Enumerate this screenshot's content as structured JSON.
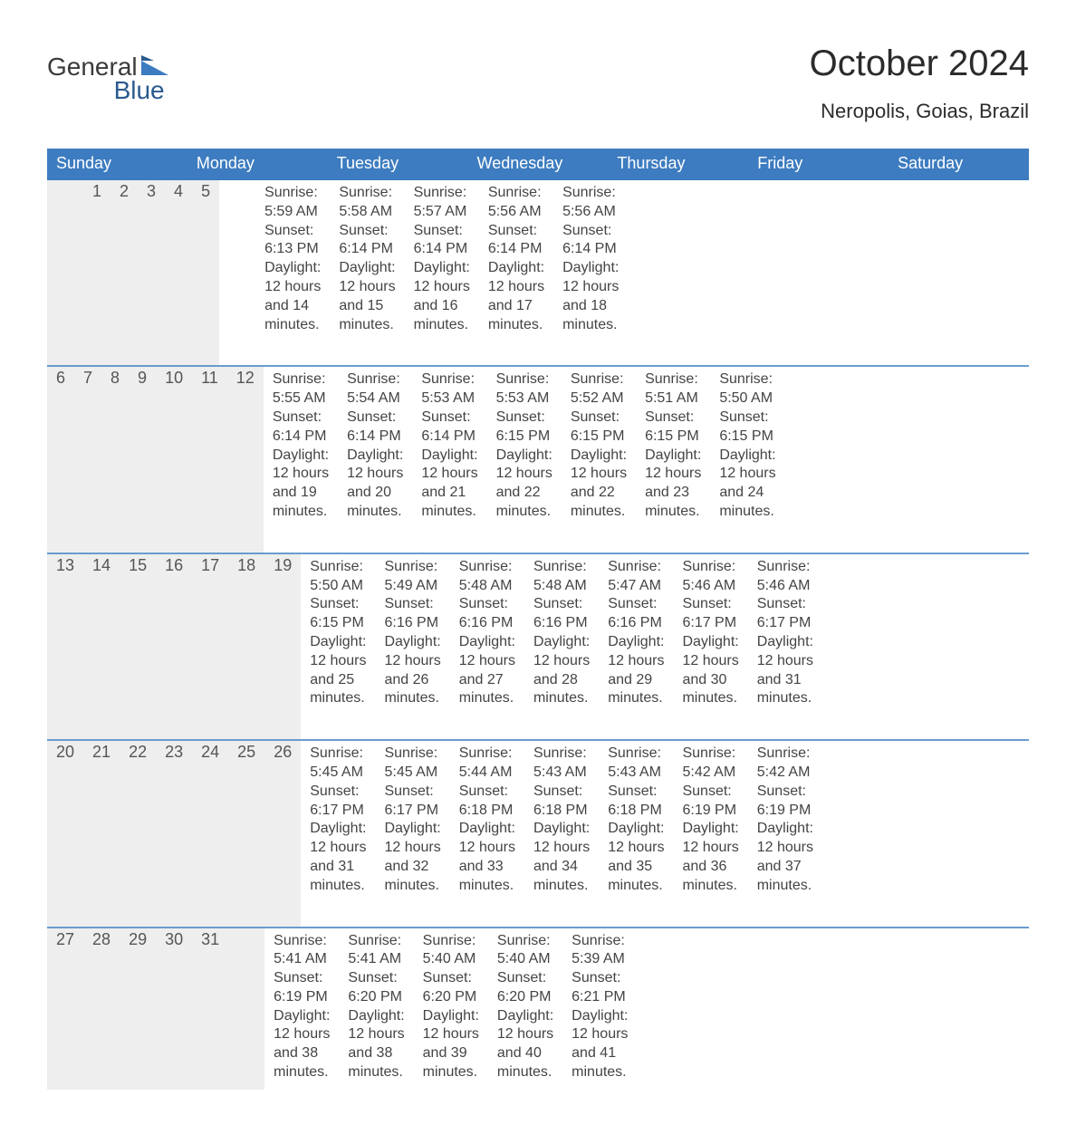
{
  "brand": {
    "line1": "General",
    "line2": "Blue",
    "logo_color": "#3d7cc0",
    "logo_dark": "#2b5b8f"
  },
  "title": "October 2024",
  "location": "Neropolis, Goias, Brazil",
  "colors": {
    "header_blue": "#3d7cc0",
    "daynum_bg": "#eeeeee",
    "row_divider": "#6a9ccf",
    "text": "#333333",
    "page_bg": "#ffffff"
  },
  "fonts": {
    "title_pt": 40,
    "location_pt": 22,
    "weekday_pt": 18,
    "daynum_pt": 18,
    "body_pt": 16
  },
  "weekdays": [
    "Sunday",
    "Monday",
    "Tuesday",
    "Wednesday",
    "Thursday",
    "Friday",
    "Saturday"
  ],
  "label_sunrise": "Sunrise:",
  "label_sunset": "Sunset:",
  "label_daylight": "Daylight:",
  "weeks": [
    [
      null,
      null,
      {
        "n": "1",
        "sunrise": "5:59 AM",
        "sunset": "6:13 PM",
        "daylight": "12 hours and 14 minutes."
      },
      {
        "n": "2",
        "sunrise": "5:58 AM",
        "sunset": "6:14 PM",
        "daylight": "12 hours and 15 minutes."
      },
      {
        "n": "3",
        "sunrise": "5:57 AM",
        "sunset": "6:14 PM",
        "daylight": "12 hours and 16 minutes."
      },
      {
        "n": "4",
        "sunrise": "5:56 AM",
        "sunset": "6:14 PM",
        "daylight": "12 hours and 17 minutes."
      },
      {
        "n": "5",
        "sunrise": "5:56 AM",
        "sunset": "6:14 PM",
        "daylight": "12 hours and 18 minutes."
      }
    ],
    [
      {
        "n": "6",
        "sunrise": "5:55 AM",
        "sunset": "6:14 PM",
        "daylight": "12 hours and 19 minutes."
      },
      {
        "n": "7",
        "sunrise": "5:54 AM",
        "sunset": "6:14 PM",
        "daylight": "12 hours and 20 minutes."
      },
      {
        "n": "8",
        "sunrise": "5:53 AM",
        "sunset": "6:14 PM",
        "daylight": "12 hours and 21 minutes."
      },
      {
        "n": "9",
        "sunrise": "5:53 AM",
        "sunset": "6:15 PM",
        "daylight": "12 hours and 22 minutes."
      },
      {
        "n": "10",
        "sunrise": "5:52 AM",
        "sunset": "6:15 PM",
        "daylight": "12 hours and 22 minutes."
      },
      {
        "n": "11",
        "sunrise": "5:51 AM",
        "sunset": "6:15 PM",
        "daylight": "12 hours and 23 minutes."
      },
      {
        "n": "12",
        "sunrise": "5:50 AM",
        "sunset": "6:15 PM",
        "daylight": "12 hours and 24 minutes."
      }
    ],
    [
      {
        "n": "13",
        "sunrise": "5:50 AM",
        "sunset": "6:15 PM",
        "daylight": "12 hours and 25 minutes."
      },
      {
        "n": "14",
        "sunrise": "5:49 AM",
        "sunset": "6:16 PM",
        "daylight": "12 hours and 26 minutes."
      },
      {
        "n": "15",
        "sunrise": "5:48 AM",
        "sunset": "6:16 PM",
        "daylight": "12 hours and 27 minutes."
      },
      {
        "n": "16",
        "sunrise": "5:48 AM",
        "sunset": "6:16 PM",
        "daylight": "12 hours and 28 minutes."
      },
      {
        "n": "17",
        "sunrise": "5:47 AM",
        "sunset": "6:16 PM",
        "daylight": "12 hours and 29 minutes."
      },
      {
        "n": "18",
        "sunrise": "5:46 AM",
        "sunset": "6:17 PM",
        "daylight": "12 hours and 30 minutes."
      },
      {
        "n": "19",
        "sunrise": "5:46 AM",
        "sunset": "6:17 PM",
        "daylight": "12 hours and 31 minutes."
      }
    ],
    [
      {
        "n": "20",
        "sunrise": "5:45 AM",
        "sunset": "6:17 PM",
        "daylight": "12 hours and 31 minutes."
      },
      {
        "n": "21",
        "sunrise": "5:45 AM",
        "sunset": "6:17 PM",
        "daylight": "12 hours and 32 minutes."
      },
      {
        "n": "22",
        "sunrise": "5:44 AM",
        "sunset": "6:18 PM",
        "daylight": "12 hours and 33 minutes."
      },
      {
        "n": "23",
        "sunrise": "5:43 AM",
        "sunset": "6:18 PM",
        "daylight": "12 hours and 34 minutes."
      },
      {
        "n": "24",
        "sunrise": "5:43 AM",
        "sunset": "6:18 PM",
        "daylight": "12 hours and 35 minutes."
      },
      {
        "n": "25",
        "sunrise": "5:42 AM",
        "sunset": "6:19 PM",
        "daylight": "12 hours and 36 minutes."
      },
      {
        "n": "26",
        "sunrise": "5:42 AM",
        "sunset": "6:19 PM",
        "daylight": "12 hours and 37 minutes."
      }
    ],
    [
      {
        "n": "27",
        "sunrise": "5:41 AM",
        "sunset": "6:19 PM",
        "daylight": "12 hours and 38 minutes."
      },
      {
        "n": "28",
        "sunrise": "5:41 AM",
        "sunset": "6:20 PM",
        "daylight": "12 hours and 38 minutes."
      },
      {
        "n": "29",
        "sunrise": "5:40 AM",
        "sunset": "6:20 PM",
        "daylight": "12 hours and 39 minutes."
      },
      {
        "n": "30",
        "sunrise": "5:40 AM",
        "sunset": "6:20 PM",
        "daylight": "12 hours and 40 minutes."
      },
      {
        "n": "31",
        "sunrise": "5:39 AM",
        "sunset": "6:21 PM",
        "daylight": "12 hours and 41 minutes."
      },
      null,
      null
    ]
  ]
}
